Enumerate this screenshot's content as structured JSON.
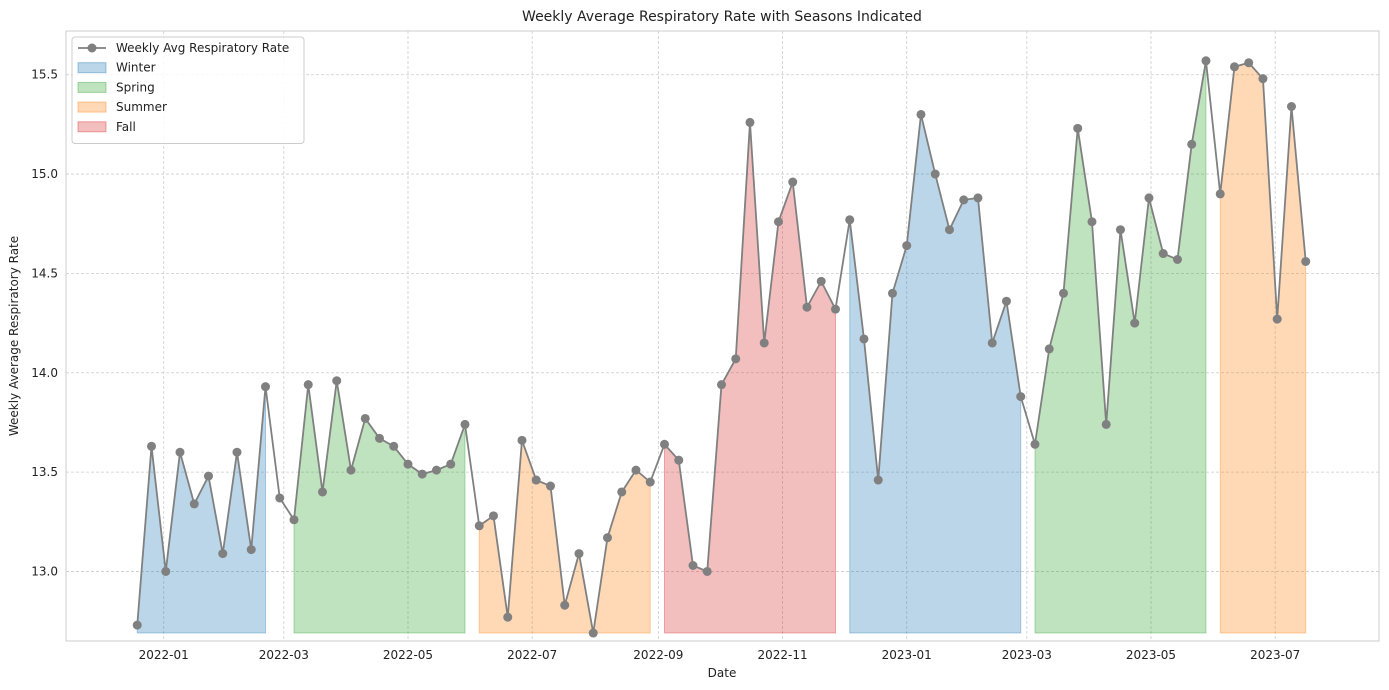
{
  "chart_data": {
    "type": "area",
    "title": "Weekly Average Respiratory Rate with Seasons Indicated",
    "xlabel": "Date",
    "ylabel": "Weekly Average Respiratory Rate",
    "ylim": [
      12.65,
      15.72
    ],
    "xlim": [
      "2021-11-14",
      "2023-08-21"
    ],
    "grid": true,
    "legend_position": "top-left",
    "x_ticks": [
      "2022-01-01",
      "2022-03-01",
      "2022-05-01",
      "2022-07-01",
      "2022-09-01",
      "2022-11-01",
      "2023-01-01",
      "2023-03-01",
      "2023-05-01",
      "2023-07-01"
    ],
    "x_tick_labels": [
      "2022-01",
      "2022-03",
      "2022-05",
      "2022-07",
      "2022-09",
      "2022-11",
      "2023-01",
      "2023-03",
      "2023-05",
      "2023-07"
    ],
    "y_ticks": [
      13.0,
      13.5,
      14.0,
      14.5,
      15.0,
      15.5
    ],
    "y_tick_labels": [
      "13.0",
      "13.5",
      "14.0",
      "14.5",
      "15.0",
      "15.5"
    ],
    "series": [
      {
        "name": "Weekly Avg Respiratory Rate",
        "color": "#808080",
        "marker": "circle",
        "x": [
          "2021-12-19",
          "2021-12-26",
          "2022-01-02",
          "2022-01-09",
          "2022-01-16",
          "2022-01-23",
          "2022-01-30",
          "2022-02-06",
          "2022-02-13",
          "2022-02-20",
          "2022-02-27",
          "2022-03-06",
          "2022-03-13",
          "2022-03-20",
          "2022-03-27",
          "2022-04-03",
          "2022-04-10",
          "2022-04-17",
          "2022-04-24",
          "2022-05-01",
          "2022-05-08",
          "2022-05-15",
          "2022-05-22",
          "2022-05-29",
          "2022-06-05",
          "2022-06-12",
          "2022-06-19",
          "2022-06-26",
          "2022-07-03",
          "2022-07-10",
          "2022-07-17",
          "2022-07-24",
          "2022-07-31",
          "2022-08-07",
          "2022-08-14",
          "2022-08-21",
          "2022-08-28",
          "2022-09-04",
          "2022-09-11",
          "2022-09-18",
          "2022-09-25",
          "2022-10-02",
          "2022-10-09",
          "2022-10-16",
          "2022-10-23",
          "2022-10-30",
          "2022-11-06",
          "2022-11-13",
          "2022-11-20",
          "2022-11-27",
          "2022-12-04",
          "2022-12-11",
          "2022-12-18",
          "2022-12-25",
          "2023-01-01",
          "2023-01-08",
          "2023-01-15",
          "2023-01-22",
          "2023-01-29",
          "2023-02-05",
          "2023-02-12",
          "2023-02-19",
          "2023-02-26",
          "2023-03-05",
          "2023-03-12",
          "2023-03-19",
          "2023-03-26",
          "2023-04-02",
          "2023-04-09",
          "2023-04-16",
          "2023-04-23",
          "2023-04-30",
          "2023-05-07",
          "2023-05-14",
          "2023-05-21",
          "2023-05-28",
          "2023-06-04",
          "2023-06-11",
          "2023-06-18",
          "2023-06-25",
          "2023-07-02",
          "2023-07-09",
          "2023-07-16"
        ],
        "y": [
          12.73,
          13.63,
          13.0,
          13.6,
          13.34,
          13.48,
          13.09,
          13.6,
          13.11,
          13.93,
          13.37,
          13.26,
          13.94,
          13.4,
          13.96,
          13.51,
          13.77,
          13.67,
          13.63,
          13.54,
          13.49,
          13.51,
          13.54,
          13.74,
          13.23,
          13.28,
          12.77,
          13.66,
          13.46,
          13.43,
          12.83,
          13.09,
          12.69,
          13.17,
          13.4,
          13.51,
          13.45,
          13.64,
          13.56,
          13.03,
          13.0,
          13.94,
          14.07,
          15.26,
          14.15,
          14.76,
          14.96,
          14.33,
          14.46,
          14.32,
          14.77,
          14.17,
          13.46,
          14.4,
          14.64,
          15.3,
          15.0,
          14.72,
          14.87,
          14.88,
          14.15,
          14.36,
          13.88,
          13.64,
          14.12,
          14.4,
          15.23,
          14.76,
          13.74,
          14.72,
          14.25,
          14.88,
          14.6,
          14.57,
          15.15,
          15.57,
          14.9,
          15.54,
          15.56,
          15.48,
          14.27,
          15.34,
          14.56
        ]
      }
    ],
    "seasons": [
      {
        "name": "Winter",
        "color": "#1f77b4",
        "from": 0,
        "to": 9
      },
      {
        "name": "Spring",
        "color": "#2ca02c",
        "from": 11,
        "to": 23
      },
      {
        "name": "Summer",
        "color": "#ff7f0e",
        "from": 24,
        "to": 36
      },
      {
        "name": "Fall",
        "color": "#d62728",
        "from": 37,
        "to": 49
      },
      {
        "name": "Winter",
        "color": "#1f77b4",
        "from": 50,
        "to": 62
      },
      {
        "name": "Spring",
        "color": "#2ca02c",
        "from": 63,
        "to": 75
      },
      {
        "name": "Summer",
        "color": "#ff7f0e",
        "from": 76,
        "to": 82
      }
    ],
    "fill_baseline": 12.69,
    "legend": [
      {
        "label": "Weekly Avg Respiratory Rate",
        "kind": "line",
        "color": "#808080"
      },
      {
        "label": "Winter",
        "kind": "patch",
        "color": "#1f77b4"
      },
      {
        "label": "Spring",
        "kind": "patch",
        "color": "#2ca02c"
      },
      {
        "label": "Summer",
        "kind": "patch",
        "color": "#ff7f0e"
      },
      {
        "label": "Fall",
        "kind": "patch",
        "color": "#d62728"
      }
    ]
  }
}
